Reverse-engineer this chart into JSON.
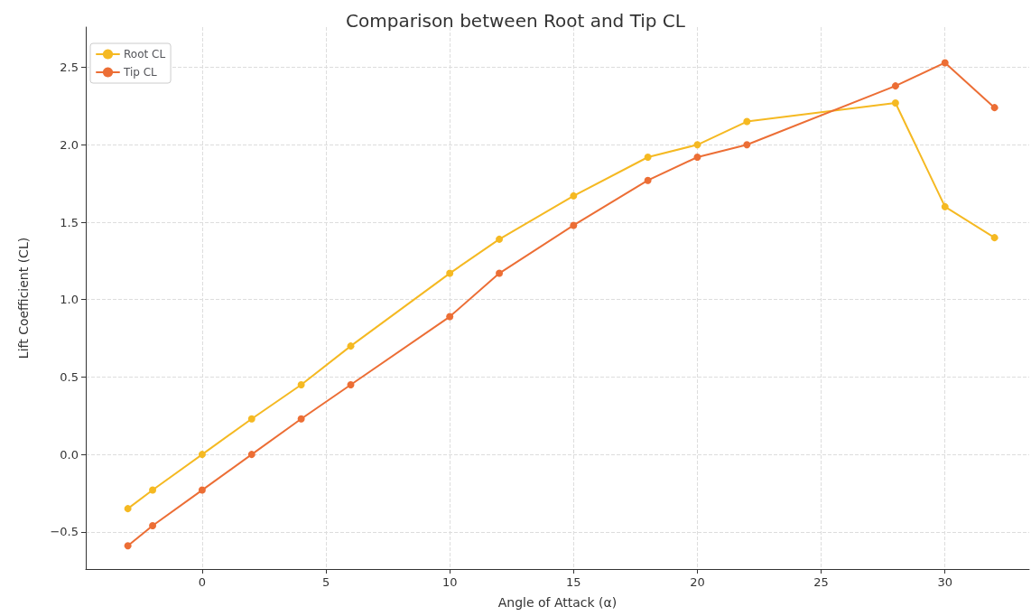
{
  "chart_data": {
    "type": "line",
    "title": "Comparison between Root and Tip CL",
    "xlabel": "Angle of Attack (α)",
    "ylabel": "Lift Coefficient (CL)",
    "x": [
      -3,
      -2,
      0,
      2,
      4,
      6,
      10,
      12,
      15,
      18,
      20,
      22,
      28,
      30,
      32
    ],
    "series": [
      {
        "name": "Root CL",
        "color": "#f5b922",
        "values": [
          -0.35,
          -0.23,
          0,
          0.23,
          0.45,
          0.7,
          1.17,
          1.39,
          1.67,
          1.92,
          2.0,
          2.15,
          2.27,
          1.6,
          1.4
        ]
      },
      {
        "name": "Tip CL",
        "color": "#ec6e35",
        "values": [
          -0.59,
          -0.46,
          -0.23,
          0,
          0.23,
          0.45,
          0.89,
          1.17,
          1.48,
          1.77,
          1.92,
          2.0,
          2.38,
          2.53,
          2.24
        ]
      }
    ],
    "xlim": [
      -4.7,
      33.4
    ],
    "xticks": [
      0,
      5,
      10,
      15,
      20,
      25,
      30
    ],
    "ylim": [
      -0.74,
      2.76
    ],
    "yticks": [
      {
        "value": -0.5,
        "label": "−0.5"
      },
      {
        "value": 0,
        "label": "0.0"
      },
      0.5,
      {
        "value": 1,
        "label": "1.0"
      },
      1.5,
      {
        "value": 2,
        "label": "2.0"
      },
      2.5
    ],
    "grid": true,
    "legend": "top left",
    "marker": "circle",
    "line_style": "solid"
  }
}
